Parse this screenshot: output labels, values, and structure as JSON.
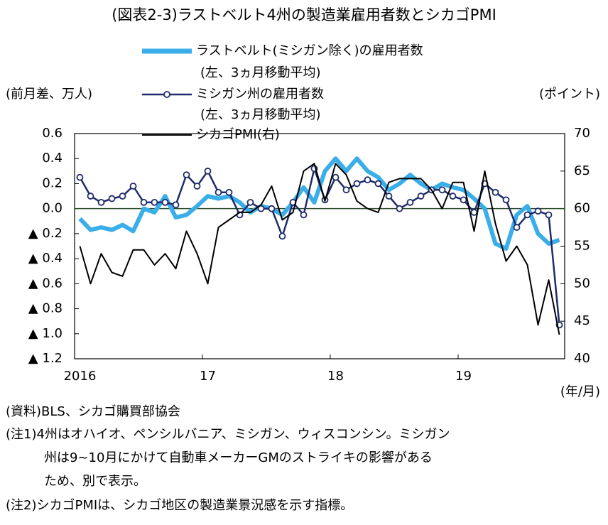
{
  "chart_data": {
    "type": "line",
    "title": "(図表2-3)ラストベルト4州の製造業雇用者数とシカゴPMI",
    "y_label": "(前月差、万人)",
    "y2_label": "(ポイント)",
    "x_label": "(年/月)",
    "categories": [
      "2016",
      null,
      null,
      null,
      null,
      null,
      null,
      null,
      null,
      null,
      null,
      null,
      "17",
      null,
      null,
      null,
      null,
      null,
      null,
      null,
      null,
      null,
      null,
      null,
      "18",
      null,
      null,
      null,
      null,
      null,
      null,
      null,
      null,
      null,
      null,
      null,
      "19",
      null,
      null,
      null,
      null,
      null,
      null,
      null,
      null,
      null
    ],
    "series": [
      {
        "name": "ラストベルト(ミシガン除く)の雇用者数",
        "legend_note": "(左、3ヵ月移動平均)",
        "color": "#3aaee8",
        "style": "thick",
        "values": [
          -0.08,
          -0.17,
          -0.15,
          -0.17,
          -0.13,
          -0.18,
          0.0,
          -0.03,
          0.1,
          -0.07,
          -0.05,
          0.02,
          0.1,
          0.08,
          0.1,
          0.05,
          -0.03,
          0.02,
          0.0,
          -0.05,
          0.05,
          0.17,
          0.05,
          0.3,
          0.4,
          0.3,
          0.4,
          0.3,
          0.25,
          0.15,
          0.2,
          0.27,
          0.2,
          0.15,
          0.2,
          0.17,
          0.15,
          0.08,
          0.0,
          -0.28,
          -0.32,
          -0.05,
          0.02,
          -0.2,
          -0.28,
          -0.25
        ]
      },
      {
        "name": "ミシガン州の雇用者数",
        "legend_note": "(左、3ヵ月移動平均)",
        "color": "#1f2a6b",
        "style": "markers",
        "values": [
          0.25,
          0.1,
          0.05,
          0.08,
          0.1,
          0.18,
          0.05,
          0.05,
          0.05,
          0.03,
          0.27,
          0.18,
          0.3,
          0.13,
          0.13,
          -0.05,
          0.05,
          0.0,
          0.0,
          -0.22,
          0.05,
          -0.05,
          0.32,
          0.07,
          0.25,
          0.15,
          0.2,
          0.23,
          0.2,
          0.1,
          0.0,
          0.05,
          0.1,
          0.15,
          0.15,
          0.1,
          0.07,
          -0.03,
          0.2,
          0.13,
          0.07,
          -0.15,
          -0.05,
          -0.02,
          -0.05,
          -0.93
        ]
      },
      {
        "name": "シカゴPMI(右)",
        "color": "#000000",
        "style": "thin",
        "axis": "y2",
        "values": [
          55,
          50,
          54,
          51.5,
          51,
          54.5,
          54.5,
          52.5,
          54,
          52,
          57,
          54,
          50,
          57.5,
          58.5,
          59.5,
          59.5,
          60.5,
          63,
          58.5,
          59.5,
          65,
          66,
          61,
          66,
          64.5,
          61,
          60,
          59.5,
          63.5,
          64,
          64,
          64,
          62.5,
          60,
          63.5,
          63.5,
          57,
          65,
          58,
          53,
          55,
          52.5,
          44.5,
          50.5,
          43.2
        ]
      }
    ],
    "ylim": [
      -1.2,
      0.6
    ],
    "yticks": [
      {
        "value": -1.2,
        "label": "▲ 1.2"
      },
      {
        "value": -1.0,
        "label": "▲ 1.0"
      },
      {
        "value": -0.8,
        "label": "▲ 0.8"
      },
      {
        "value": -0.6,
        "label": "▲ 0.6"
      },
      {
        "value": -0.4,
        "label": "▲ 0.4"
      },
      {
        "value": -0.2,
        "label": "▲ 0.2"
      },
      {
        "value": 0,
        "label": "0.0"
      },
      0.2,
      0.4,
      0.6
    ],
    "y2lim": [
      40,
      70
    ],
    "y2ticks": [
      40,
      45,
      50,
      55,
      60,
      65,
      70
    ],
    "notes": [
      "(資料)BLS、シカゴ購買部協会",
      "(注1)4州はオハイオ、ペンシルバニア、ミシガン、ウィスコンシン。ミシガン",
      "州は9~10月にかけて自動車メーカーGMのストライキの影響がある",
      "ため、別で表示。",
      "(注2)シカゴPMIは、シカゴ地区の製造業景況感を示す指標。"
    ]
  }
}
